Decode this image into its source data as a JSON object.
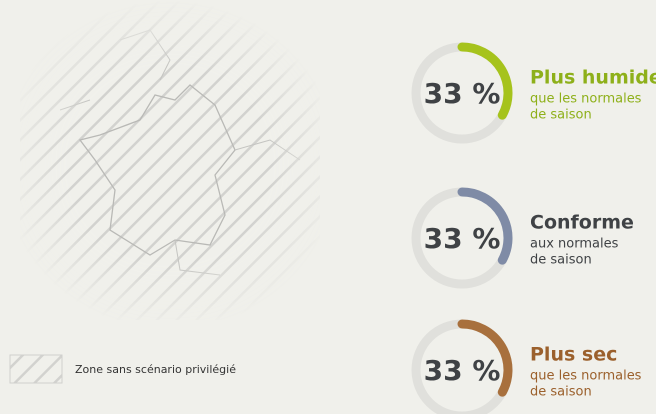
{
  "map_legend": {
    "label": "Zone sans scénario privilégié"
  },
  "indicators": [
    {
      "value": 33,
      "value_label": "33 %",
      "title": "Plus humide",
      "subtitle": [
        "que les normales",
        "de saison"
      ],
      "color": "#a6c31c",
      "text_color": "#8eb01a"
    },
    {
      "value": 33,
      "value_label": "33 %",
      "title": "Conforme",
      "subtitle": [
        "aux normales",
        "de saison"
      ],
      "color": "#7f8ba6",
      "text_color": "#3f4245"
    },
    {
      "value": 33,
      "value_label": "33 %",
      "title": "Plus sec",
      "subtitle": [
        "que les normales",
        "de saison"
      ],
      "color": "#a8703d",
      "text_color": "#9b602c"
    }
  ]
}
